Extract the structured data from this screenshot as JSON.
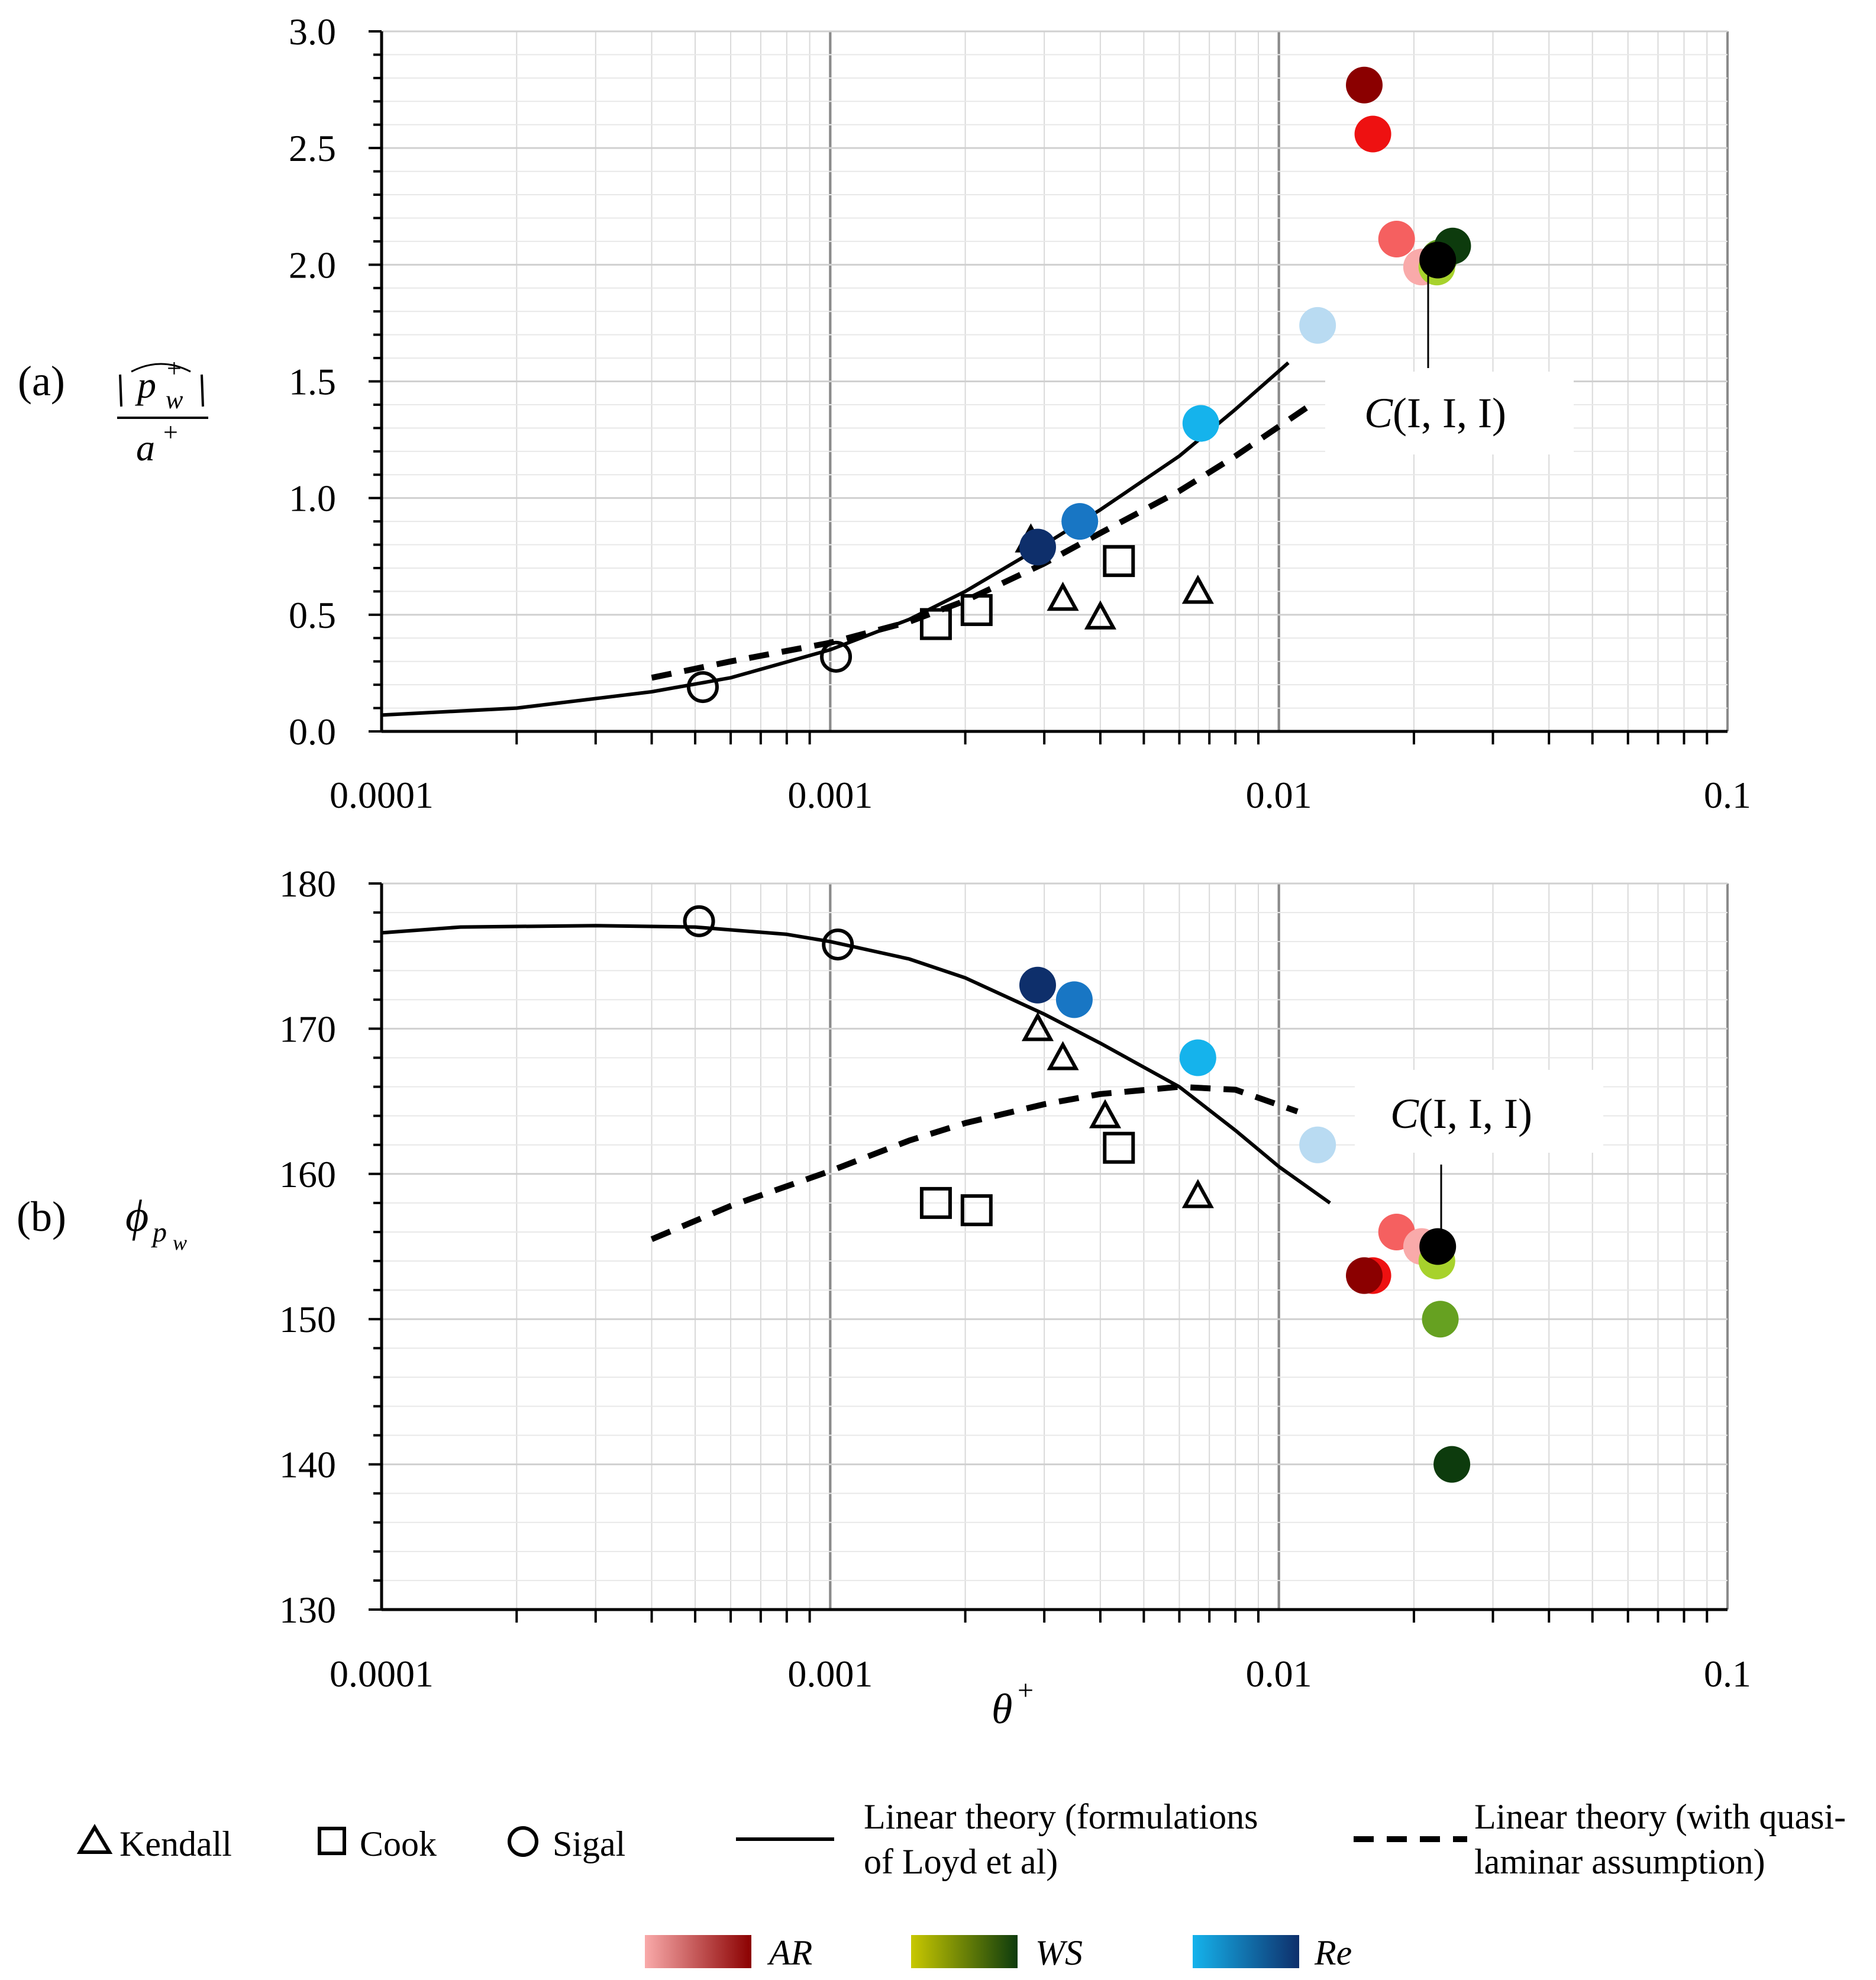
{
  "chart_data": [
    {
      "panel": "(a)",
      "type": "scatter",
      "x_scale": "log",
      "xlim": [
        0.0001,
        0.1
      ],
      "ylim": [
        0.0,
        3.0
      ],
      "x_ticks": [
        "0.0001",
        "0.001",
        "0.01",
        "0.1"
      ],
      "y_ticks": [
        "0.0",
        "0.5",
        "1.0",
        "1.5",
        "2.0",
        "2.5",
        "3.0"
      ],
      "ylabel": {
        "numerator": "|p̂w+|",
        "num_base": "p",
        "num_sup": "+",
        "num_sub": "w",
        "denominator_base": "a",
        "denominator_sup": "+"
      },
      "grid": true,
      "annotation": {
        "text": "C(I, I, I)",
        "italic_part": "C",
        "rest": "(I, I, I)",
        "points_to": {
          "x": 0.0225,
          "y": 2.02
        }
      },
      "series": [
        {
          "name": "Kendall",
          "marker": "triangle",
          "points": [
            {
              "x": 0.0028,
              "y": 0.82
            },
            {
              "x": 0.0033,
              "y": 0.57
            },
            {
              "x": 0.004,
              "y": 0.49
            },
            {
              "x": 0.0066,
              "y": 0.6
            }
          ]
        },
        {
          "name": "Cook",
          "marker": "square",
          "points": [
            {
              "x": 0.00172,
              "y": 0.46
            },
            {
              "x": 0.00212,
              "y": 0.52
            },
            {
              "x": 0.0044,
              "y": 0.73
            }
          ]
        },
        {
          "name": "Sigal",
          "marker": "circle",
          "points": [
            {
              "x": 0.00052,
              "y": 0.19
            },
            {
              "x": 0.00103,
              "y": 0.32
            }
          ]
        },
        {
          "name": "Linear theory (formulations of Loyd et al)",
          "line": "solid",
          "points": [
            {
              "x": 0.0001,
              "y": 0.07
            },
            {
              "x": 0.0002,
              "y": 0.1
            },
            {
              "x": 0.0004,
              "y": 0.17
            },
            {
              "x": 0.0006,
              "y": 0.23
            },
            {
              "x": 0.001,
              "y": 0.35
            },
            {
              "x": 0.0015,
              "y": 0.48
            },
            {
              "x": 0.002,
              "y": 0.6
            },
            {
              "x": 0.003,
              "y": 0.8
            },
            {
              "x": 0.004,
              "y": 0.95
            },
            {
              "x": 0.006,
              "y": 1.18
            },
            {
              "x": 0.008,
              "y": 1.38
            },
            {
              "x": 0.0105,
              "y": 1.58
            }
          ]
        },
        {
          "name": "Linear theory (with quasi-laminar assumption)",
          "line": "dashed",
          "points": [
            {
              "x": 0.0004,
              "y": 0.23
            },
            {
              "x": 0.0006,
              "y": 0.3
            },
            {
              "x": 0.001,
              "y": 0.38
            },
            {
              "x": 0.0015,
              "y": 0.47
            },
            {
              "x": 0.002,
              "y": 0.56
            },
            {
              "x": 0.003,
              "y": 0.72
            },
            {
              "x": 0.004,
              "y": 0.85
            },
            {
              "x": 0.006,
              "y": 1.03
            },
            {
              "x": 0.008,
              "y": 1.18
            },
            {
              "x": 0.012,
              "y": 1.41
            }
          ]
        },
        {
          "name": "AR",
          "marker": "filled-circle",
          "points": [
            {
              "x": 0.0155,
              "y": 2.77,
              "color": "#8b0000"
            },
            {
              "x": 0.0162,
              "y": 2.56,
              "color": "#ee1111"
            },
            {
              "x": 0.0183,
              "y": 2.11,
              "color": "#f56060"
            },
            {
              "x": 0.0208,
              "y": 1.99,
              "color": "#f9aaaa"
            }
          ]
        },
        {
          "name": "WS",
          "marker": "filled-circle",
          "points": [
            {
              "x": 0.0225,
              "y": 1.99,
              "color": "#a7d22c"
            },
            {
              "x": 0.0228,
              "y": 2.03,
              "color": "#66a121"
            },
            {
              "x": 0.0244,
              "y": 2.08,
              "color": "#0d3b0d"
            },
            {
              "x": 0.0226,
              "y": 2.02,
              "color": "#000000"
            }
          ]
        },
        {
          "name": "Re",
          "marker": "filled-circle",
          "points": [
            {
              "x": 0.0122,
              "y": 1.74,
              "color": "#b9dbf2"
            },
            {
              "x": 0.0067,
              "y": 1.32,
              "color": "#15b3ec"
            },
            {
              "x": 0.0036,
              "y": 0.9,
              "color": "#1876c4"
            },
            {
              "x": 0.0029,
              "y": 0.79,
              "color": "#0e2f6b"
            }
          ]
        }
      ]
    },
    {
      "panel": "(b)",
      "type": "scatter",
      "x_scale": "log",
      "xlim": [
        0.0001,
        0.1
      ],
      "ylim": [
        130,
        180
      ],
      "x_ticks": [
        "0.0001",
        "0.001",
        "0.01",
        "0.1"
      ],
      "y_ticks": [
        "130",
        "140",
        "150",
        "160",
        "170",
        "180"
      ],
      "xlabel": {
        "base": "θ",
        "sup": "+"
      },
      "ylabel": {
        "base": "ϕ",
        "sub": "p",
        "subsub": "w"
      },
      "grid": true,
      "annotation": {
        "text": "C(I, I, I)",
        "italic_part": "C",
        "rest": "(I, I, I)",
        "points_to": {
          "x": 0.0225,
          "y": 155
        }
      },
      "series": [
        {
          "name": "Kendall",
          "marker": "triangle",
          "points": [
            {
              "x": 0.0029,
              "y": 170
            },
            {
              "x": 0.0033,
              "y": 168
            },
            {
              "x": 0.0041,
              "y": 164
            },
            {
              "x": 0.0066,
              "y": 158.5
            }
          ]
        },
        {
          "name": "Cook",
          "marker": "square",
          "points": [
            {
              "x": 0.00172,
              "y": 158
            },
            {
              "x": 0.00212,
              "y": 157.5
            },
            {
              "x": 0.0044,
              "y": 161.8
            }
          ]
        },
        {
          "name": "Sigal",
          "marker": "circle",
          "points": [
            {
              "x": 0.00051,
              "y": 177.4
            },
            {
              "x": 0.00104,
              "y": 175.8
            }
          ]
        },
        {
          "name": "Linear theory (formulations of Loyd et al)",
          "line": "solid",
          "points": [
            {
              "x": 0.0001,
              "y": 176.6
            },
            {
              "x": 0.00015,
              "y": 177
            },
            {
              "x": 0.0003,
              "y": 177.1
            },
            {
              "x": 0.0005,
              "y": 177
            },
            {
              "x": 0.0008,
              "y": 176.5
            },
            {
              "x": 0.001,
              "y": 176
            },
            {
              "x": 0.0015,
              "y": 174.8
            },
            {
              "x": 0.002,
              "y": 173.5
            },
            {
              "x": 0.003,
              "y": 171
            },
            {
              "x": 0.004,
              "y": 169
            },
            {
              "x": 0.006,
              "y": 166
            },
            {
              "x": 0.008,
              "y": 163
            },
            {
              "x": 0.01,
              "y": 160.5
            },
            {
              "x": 0.013,
              "y": 158
            }
          ]
        },
        {
          "name": "Linear theory (with quasi-laminar assumption)",
          "line": "dashed",
          "points": [
            {
              "x": 0.0004,
              "y": 155.5
            },
            {
              "x": 0.0006,
              "y": 157.8
            },
            {
              "x": 0.001,
              "y": 160.2
            },
            {
              "x": 0.0015,
              "y": 162.3
            },
            {
              "x": 0.002,
              "y": 163.5
            },
            {
              "x": 0.003,
              "y": 164.8
            },
            {
              "x": 0.004,
              "y": 165.5
            },
            {
              "x": 0.006,
              "y": 166
            },
            {
              "x": 0.008,
              "y": 165.8
            },
            {
              "x": 0.011,
              "y": 164.3
            }
          ]
        },
        {
          "name": "AR",
          "marker": "filled-circle",
          "points": [
            {
              "x": 0.0162,
              "y": 153,
              "color": "#ee1111"
            },
            {
              "x": 0.0155,
              "y": 153,
              "color": "#8b0000"
            },
            {
              "x": 0.0183,
              "y": 156,
              "color": "#f56060"
            },
            {
              "x": 0.0208,
              "y": 155,
              "color": "#f9aaaa"
            }
          ]
        },
        {
          "name": "WS",
          "marker": "filled-circle",
          "points": [
            {
              "x": 0.0225,
              "y": 154,
              "color": "#a7d22c"
            },
            {
              "x": 0.0229,
              "y": 150,
              "color": "#66a121"
            },
            {
              "x": 0.0243,
              "y": 140,
              "color": "#0d3b0d"
            },
            {
              "x": 0.0226,
              "y": 155,
              "color": "#000000"
            }
          ]
        },
        {
          "name": "Re",
          "marker": "filled-circle",
          "points": [
            {
              "x": 0.0122,
              "y": 162,
              "color": "#b9dbf2"
            },
            {
              "x": 0.0066,
              "y": 168,
              "color": "#15b3ec"
            },
            {
              "x": 0.0035,
              "y": 172,
              "color": "#1876c4"
            },
            {
              "x": 0.0029,
              "y": 173,
              "color": "#0e2f6b"
            }
          ]
        }
      ]
    }
  ],
  "legend": {
    "markers": [
      {
        "symbol": "triangle",
        "label": "Kendall"
      },
      {
        "symbol": "square",
        "label": "Cook"
      },
      {
        "symbol": "circle",
        "label": "Sigal"
      }
    ],
    "lines": [
      {
        "style": "solid",
        "line1": "Linear theory (formulations",
        "line2": "of Loyd et al)"
      },
      {
        "style": "dashed",
        "line1": "Linear theory (with quasi-",
        "line2": "laminar assumption)"
      }
    ],
    "gradients": [
      {
        "label": "AR",
        "from": "#f9aaaa",
        "to": "#8b0000"
      },
      {
        "label": "WS",
        "from": "#c8c800",
        "to": "#0d3b0d"
      },
      {
        "label": "Re",
        "from": "#15b3ec",
        "to": "#0e2f6b"
      }
    ]
  }
}
